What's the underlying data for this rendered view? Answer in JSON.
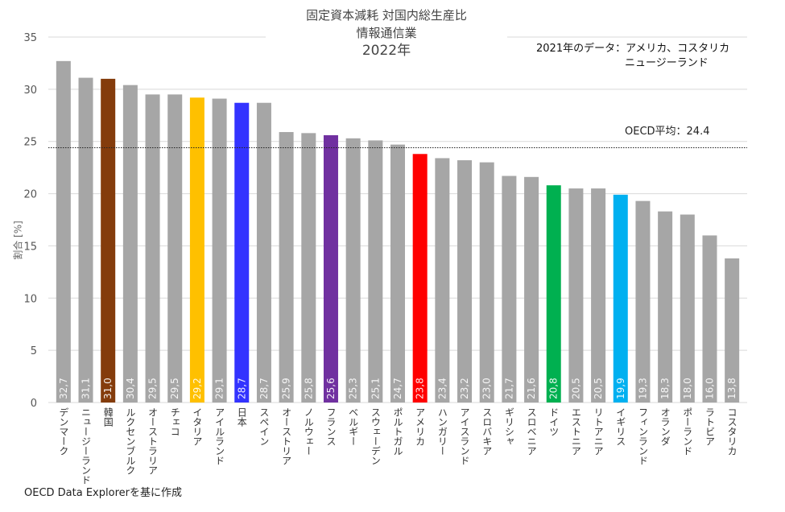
{
  "chart_data": {
    "type": "bar",
    "title": "固定資本減耗 対国内総生産比",
    "subtitle": "情報通信業",
    "year": "2022年",
    "note_line1": "2021年のデータ：アメリカ、コスタリカ",
    "note_line2": "ニュージーランド",
    "ylabel": "割合 [%]",
    "xlabel": "",
    "ylim": [
      0,
      35
    ],
    "yticks": [
      "0",
      "5",
      "10",
      "15",
      "20",
      "25",
      "30",
      "35"
    ],
    "grid": true,
    "reference_line": {
      "label": "OECD平均：24.4",
      "value": 24.4
    },
    "source": "OECD Data Explorerを基に作成",
    "categories": [
      "デンマーク",
      "ニュージーランド",
      "韓国",
      "ルクセンブルク",
      "オーストラリア",
      "チェコ",
      "イタリア",
      "アイルランド",
      "日本",
      "スペイン",
      "オーストリア",
      "ノルウェー",
      "フランス",
      "ベルギー",
      "スウェーデン",
      "ポルトガル",
      "アメリカ",
      "ハンガリー",
      "アイスランド",
      "スロバキア",
      "ギリシャ",
      "スロベニア",
      "ドイツ",
      "エストニア",
      "リトアニア",
      "イギリス",
      "フィンランド",
      "オランダ",
      "ポーランド",
      "ラトビア",
      "コスタリカ"
    ],
    "values": [
      32.7,
      31.1,
      31.0,
      30.4,
      29.5,
      29.5,
      29.2,
      29.1,
      28.7,
      28.7,
      25.9,
      25.8,
      25.6,
      25.3,
      25.1,
      24.7,
      23.8,
      23.4,
      23.2,
      23.0,
      21.7,
      21.6,
      20.8,
      20.5,
      20.5,
      19.9,
      19.3,
      18.3,
      18.0,
      16.0,
      13.8
    ],
    "value_labels": [
      "32,7",
      "31,1",
      "31,0",
      "30,4",
      "29,5",
      "29,5",
      "29,2",
      "29,1",
      "28,7",
      "28,7",
      "25,9",
      "25,8",
      "25,6",
      "25,3",
      "25,1",
      "24,7",
      "23,8",
      "23,4",
      "23,2",
      "23,0",
      "21,7",
      "21,6",
      "20,8",
      "20,5",
      "20,5",
      "19,9",
      "19,3",
      "18,3",
      "18,0",
      "16,0",
      "13,8"
    ],
    "default_color": "#a6a6a6",
    "highlight_colors": {
      "韓国": "#843c0c",
      "イタリア": "#ffc000",
      "日本": "#3333ff",
      "フランス": "#7030a0",
      "アメリカ": "#ff0000",
      "ドイツ": "#00b050",
      "イギリス": "#00b0f0"
    }
  }
}
